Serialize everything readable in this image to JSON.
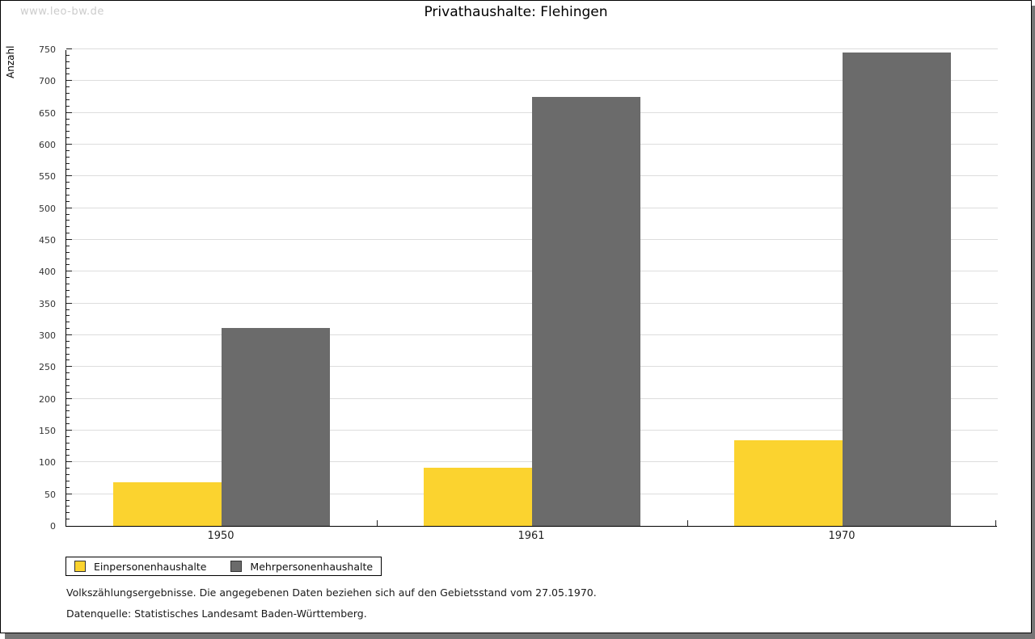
{
  "watermark": "www.leo-bw.de",
  "chart_data": {
    "type": "bar",
    "title": "Privathaushalte: Flehingen",
    "ylabel": "Anzahl",
    "xlabel": "",
    "categories": [
      "1950",
      "1961",
      "1970"
    ],
    "series": [
      {
        "name": "Einpersonenhaushalte",
        "color": "#FBD32F",
        "values": [
          69,
          92,
          135
        ]
      },
      {
        "name": "Mehrpersonenhaushalte",
        "color": "#6B6B6B",
        "values": [
          311,
          675,
          745
        ]
      }
    ],
    "ylim": [
      0,
      750
    ],
    "ytick_step": 50,
    "ytick_minor_step": 10,
    "grid": true,
    "legend_position": "bottom-left"
  },
  "footer": {
    "line1": "Volkszählungsergebnisse. Die angegebenen Daten beziehen sich auf den Gebietsstand vom 27.05.1970.",
    "line2": "Datenquelle: Statistisches Landesamt Baden-Württemberg."
  }
}
